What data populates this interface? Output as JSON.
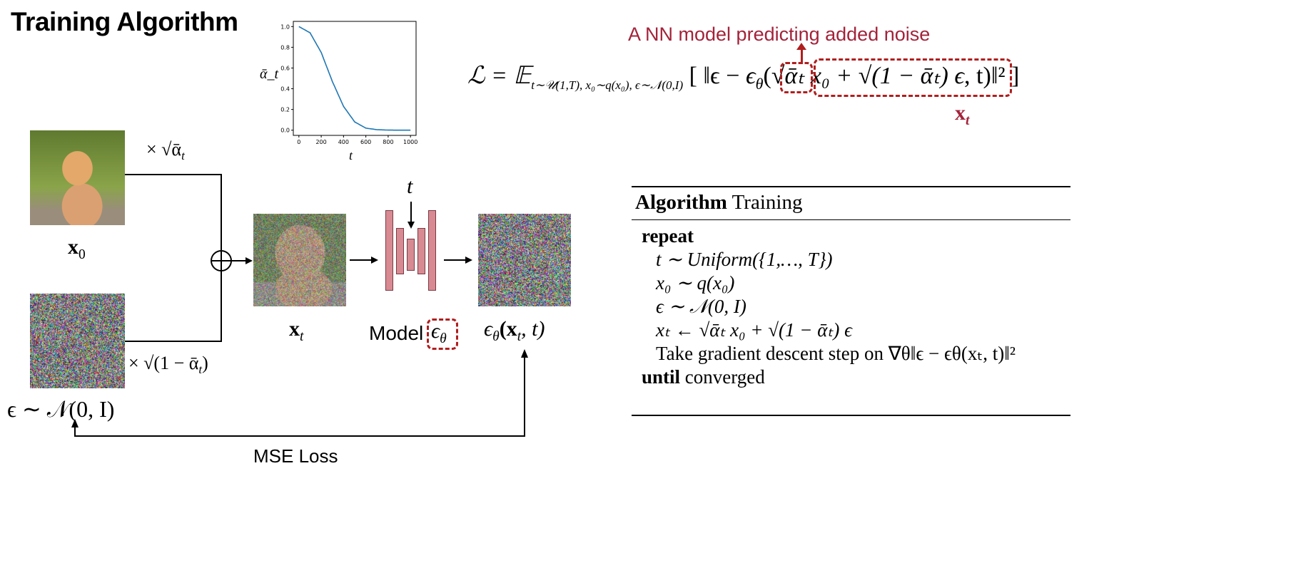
{
  "title": "Training Algorithm",
  "chart_data": {
    "type": "line",
    "title": "",
    "xlabel": "t",
    "ylabel": "ᾱ_t",
    "x": [
      0,
      100,
      200,
      300,
      400,
      500,
      600,
      700,
      800,
      900,
      1000
    ],
    "series": [
      {
        "name": "alpha_bar",
        "values": [
          1.0,
          0.94,
          0.75,
          0.47,
          0.23,
          0.08,
          0.02,
          0.005,
          0.001,
          0.0,
          0.0
        ],
        "color": "#1f77b4"
      }
    ],
    "xticks": [
      "0",
      "200",
      "400",
      "600",
      "800",
      "1000"
    ],
    "yticks": [
      "0.0",
      "0.2",
      "0.4",
      "0.6",
      "0.8",
      "1.0"
    ],
    "xlim": [
      -50,
      1050
    ],
    "ylim": [
      -0.05,
      1.05
    ],
    "grid": false
  },
  "annotation": {
    "model_note": "A NN model predicting added noise",
    "xt_label": "x",
    "xt_sub": "t",
    "color": "#a3233a"
  },
  "formula": {
    "lhs": "ℒ = 𝔼",
    "subscript": "t∼𝒰(1,T), x₀∼q(x₀), ϵ∼𝒩(0,I)",
    "body_a": "[ ‖ϵ − ",
    "eps_theta": "ϵ",
    "theta": "θ",
    "body_b": "(",
    "inner": "√ᾱₜ x₀ + √(1 − ᾱₜ) ϵ",
    "body_c": ", t)‖² ]"
  },
  "diagram": {
    "x0_label": "x",
    "x0_sub": "0",
    "scale_signal": "× √ᾱ",
    "scale_signal_sub": "t",
    "scale_noise": "× √(1 − ᾱ",
    "scale_noise_sub": "t",
    "scale_noise_end": ")",
    "noise_label": "ϵ ∼ 𝒩(0, I)",
    "xt_label": "x",
    "xt_sub": "t",
    "t_label": "t",
    "model_label": "Model",
    "model_eps": "ϵ",
    "model_theta": "θ",
    "output_label": "ϵ",
    "output_theta": "θ",
    "output_rest": "(x",
    "output_rest_sub": "t",
    "output_end": ", t)",
    "loss_label": "MSE Loss"
  },
  "algorithm": {
    "title_bold": "Algorithm",
    "title_rest": " Training",
    "lines": [
      {
        "bold": "repeat",
        "rest": ""
      },
      {
        "bold": "",
        "rest": "t ∼ Uniform({1,…, T})"
      },
      {
        "bold": "",
        "rest": "x₀ ∼ q(x₀)"
      },
      {
        "bold": "",
        "rest": "ϵ ∼ 𝒩(0, I)"
      },
      {
        "bold": "",
        "rest": "xₜ ← √ᾱₜ x₀ + √(1 − ᾱₜ) ϵ"
      },
      {
        "bold": "",
        "rest": "Take gradient descent step on ∇θ‖ϵ − ϵθ(xₜ, t)‖²"
      },
      {
        "bold": "until",
        "rest": " converged"
      }
    ]
  }
}
